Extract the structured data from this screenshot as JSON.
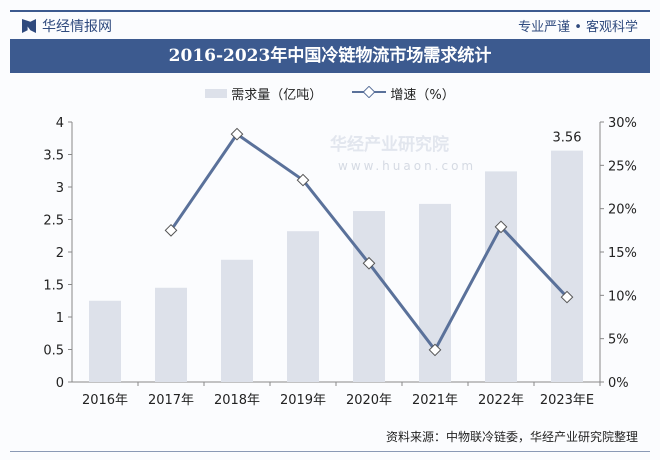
{
  "header": {
    "brand": "华经情报网",
    "slogan": "专业严谨 • 客观科学"
  },
  "footer": {
    "source": "资料来源：中物联冷链委，华经产业研究院整理"
  },
  "watermark": {
    "text": "华经产业研究院",
    "url": "www.huaon.com"
  },
  "colors": {
    "bar": "#dde1ea",
    "line": "#5a719a",
    "title_bg": "#3c5a8f"
  },
  "chart_data": {
    "type": "bar+line",
    "title": "2016-2023年中国冷链物流市场需求统计",
    "categories": [
      "2016年",
      "2017年",
      "2018年",
      "2019年",
      "2020年",
      "2021年",
      "2022年",
      "2023年E"
    ],
    "series": [
      {
        "name": "需求量（亿吨）",
        "type": "bar",
        "axis": "left",
        "values": [
          1.25,
          1.45,
          1.88,
          2.32,
          2.63,
          2.74,
          3.24,
          3.56
        ],
        "data_labels": [
          null,
          null,
          null,
          null,
          null,
          null,
          null,
          "3.56"
        ]
      },
      {
        "name": "增速（%）",
        "type": "line",
        "axis": "right",
        "marker": "diamond",
        "values": [
          null,
          17.5,
          28.6,
          23.3,
          13.7,
          3.7,
          17.9,
          9.8
        ]
      }
    ],
    "y_left": {
      "range": [
        0,
        4
      ],
      "ticks": [
        "0",
        "0.5",
        "1",
        "1.5",
        "2",
        "2.5",
        "3",
        "3.5",
        "4"
      ]
    },
    "y_right": {
      "range": [
        0,
        30
      ],
      "ticks": [
        "0%",
        "5%",
        "10%",
        "15%",
        "20%",
        "25%",
        "30%"
      ]
    },
    "grid": false,
    "legend": "top-center"
  }
}
